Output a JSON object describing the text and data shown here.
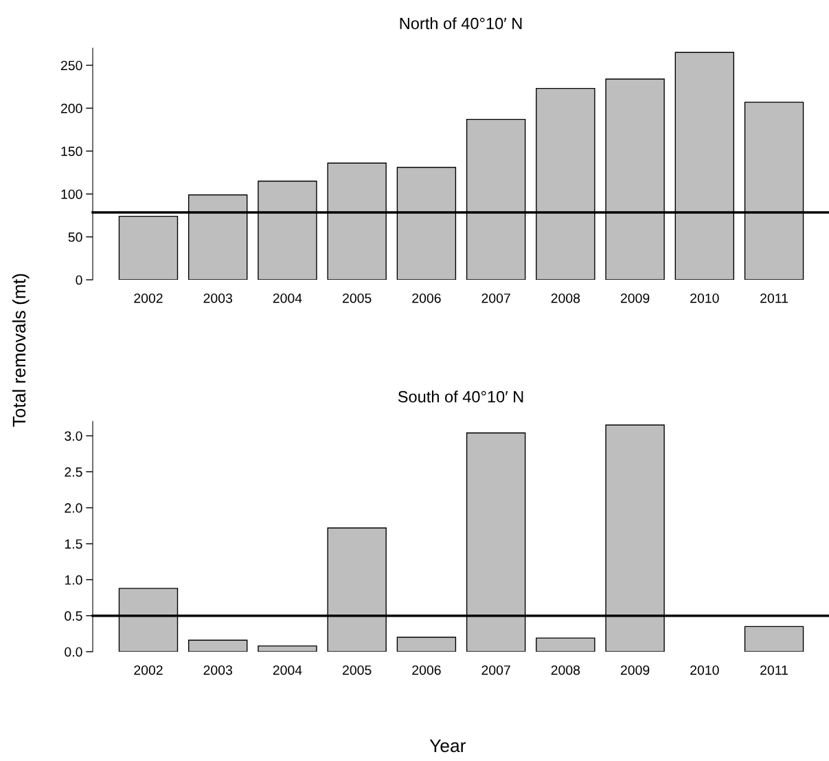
{
  "chart_data": [
    {
      "type": "bar",
      "title": "North of 40°10′ N",
      "ylabel": "Total removals (mt)",
      "categories": [
        "2002",
        "2003",
        "2004",
        "2005",
        "2006",
        "2007",
        "2008",
        "2009",
        "2010",
        "2011"
      ],
      "values": [
        74,
        99,
        115,
        136,
        131,
        187,
        223,
        234,
        265,
        207
      ],
      "color": "#bebebe",
      "ylim": [
        0,
        270
      ],
      "yticks": [
        0,
        50,
        100,
        150,
        200,
        250
      ],
      "grid": false,
      "ref_lines": [
        {
          "axis": "y",
          "value": 78.5,
          "color": "#000000"
        }
      ]
    },
    {
      "type": "bar",
      "title": "South of 40°10′ N",
      "xlabel": "Year",
      "categories": [
        "2002",
        "2003",
        "2004",
        "2005",
        "2006",
        "2007",
        "2008",
        "2009",
        "2010",
        "2011"
      ],
      "values": [
        0.88,
        0.16,
        0.08,
        1.72,
        0.2,
        3.04,
        0.19,
        3.15,
        null,
        0.35
      ],
      "color": "#bebebe",
      "ylim": [
        0,
        3.2
      ],
      "yticks": [
        {
          "value": 0,
          "label": "0.0"
        },
        {
          "value": 0.5,
          "label": "0.5"
        },
        {
          "value": 1,
          "label": "1.0"
        },
        {
          "value": 1.5,
          "label": "1.5"
        },
        {
          "value": 2,
          "label": "2.0"
        },
        {
          "value": 2.5,
          "label": "2.5"
        },
        {
          "value": 3,
          "label": "3.0"
        }
      ],
      "grid": false,
      "ref_lines": [
        {
          "axis": "y",
          "value": 0.5,
          "color": "#000000"
        }
      ]
    }
  ]
}
